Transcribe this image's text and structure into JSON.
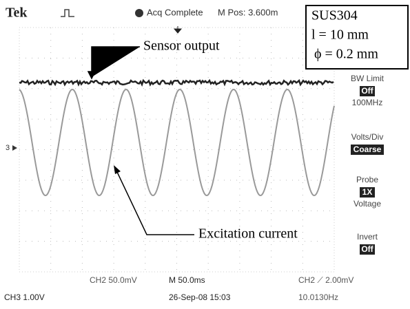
{
  "header": {
    "brand": "Tek",
    "status": "Acq Complete",
    "position": "M Pos: 3.600m"
  },
  "inset": {
    "material": "SUS304",
    "length": "l = 10 mm",
    "diameter": "ϕ = 0.2 mm"
  },
  "annotations": {
    "sensor": "Sensor output",
    "excitation": "Excitation current"
  },
  "channel_marker": "3",
  "menu": [
    {
      "title": "BW Limit",
      "value": "Off",
      "extra": "100MHz"
    },
    {
      "title": "Volts/Div",
      "value": "Coarse"
    },
    {
      "title": "Probe",
      "value": "1X",
      "extra": "Voltage"
    },
    {
      "title": "Invert",
      "value": "Off"
    }
  ],
  "status_bar": {
    "ch2": "CH2 50.0mV",
    "timebase": "M 50.0ms",
    "trigger": "CH2 ⟋ 2.00mV",
    "ch3": "CH3 1.00V",
    "date": "26-Sep-08 15:03",
    "frequency": "10.0130Hz"
  }
}
